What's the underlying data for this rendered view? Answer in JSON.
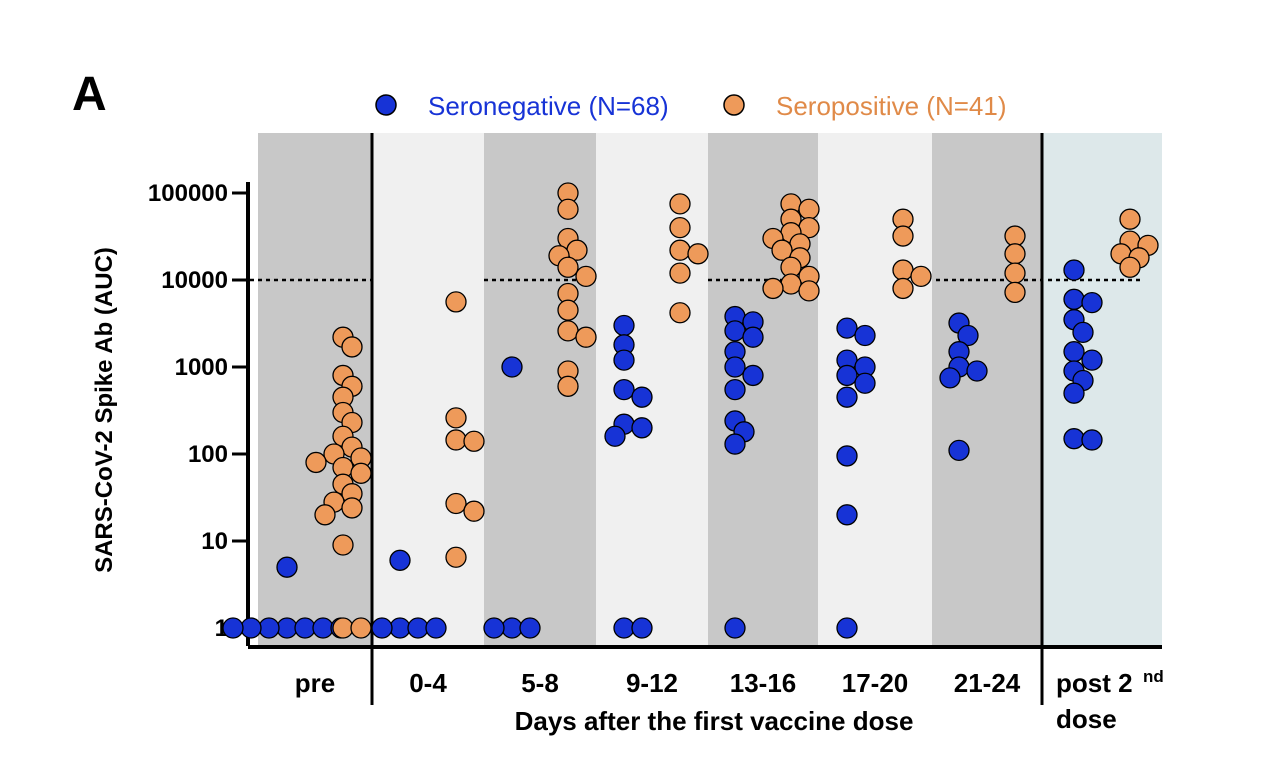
{
  "chart_data": {
    "type": "scatter",
    "panel_label": "A",
    "ylabel": "SARS-CoV-2 Spike Ab (AUC)",
    "xlabel": "Days after the first vaccine dose",
    "yscale": "log",
    "ylim": [
      1,
      100000
    ],
    "yticks": [
      {
        "value": 1,
        "label": "1"
      },
      {
        "value": 10,
        "label": "10"
      },
      {
        "value": 100,
        "label": "100"
      },
      {
        "value": 1000,
        "label": "1000"
      },
      {
        "value": 10000,
        "label": "10000"
      },
      {
        "value": 100000,
        "label": "100000"
      }
    ],
    "threshold": 10000,
    "legend": [
      {
        "label": "Seronegative (N=68)",
        "color": "#1733d6",
        "key": "seronegative"
      },
      {
        "label": "Seropositive (N=41)",
        "color": "#ee9a5a",
        "key": "seropositive"
      }
    ],
    "groups": [
      {
        "label": "pre",
        "shade": "#c8c8c8",
        "seronegative": [
          5,
          1,
          1,
          1,
          1,
          1,
          1,
          1
        ],
        "seropositive": [
          2200,
          1700,
          800,
          600,
          450,
          300,
          230,
          160,
          120,
          100,
          90,
          80,
          70,
          60,
          45,
          35,
          28,
          24,
          20,
          9,
          1,
          1
        ]
      },
      {
        "label": "0-4",
        "shade": "#f0f0f0",
        "seronegative": [
          6,
          1,
          1,
          1,
          1
        ],
        "seropositive": [
          5600,
          260,
          145,
          140,
          27,
          22,
          6.5
        ]
      },
      {
        "label": "5-8",
        "shade": "#c8c8c8",
        "seronegative": [
          1000,
          1,
          1,
          1
        ],
        "seropositive": [
          100000,
          65000,
          30000,
          22000,
          19000,
          14000,
          11000,
          7000,
          4500,
          2600,
          2200,
          900,
          600
        ]
      },
      {
        "label": "9-12",
        "shade": "#f0f0f0",
        "seronegative": [
          3000,
          1800,
          1200,
          550,
          450,
          220,
          200,
          160,
          1,
          1
        ],
        "seropositive": [
          75000,
          40000,
          22000,
          20000,
          12000,
          4200
        ]
      },
      {
        "label": "13-16",
        "shade": "#c8c8c8",
        "seronegative": [
          3800,
          3300,
          2600,
          2200,
          1500,
          1000,
          800,
          550,
          240,
          180,
          130,
          1
        ],
        "seropositive": [
          75000,
          65000,
          50000,
          40000,
          35000,
          30000,
          26000,
          22000,
          18000,
          14000,
          11000,
          9000,
          8000,
          7500
        ]
      },
      {
        "label": "17-20",
        "shade": "#f0f0f0",
        "seronegative": [
          2800,
          2300,
          1200,
          1000,
          800,
          650,
          450,
          95,
          20,
          1
        ],
        "seropositive": [
          50000,
          32000,
          13000,
          11000,
          8000
        ]
      },
      {
        "label": "21-24",
        "shade": "#c8c8c8",
        "seronegative": [
          3200,
          2300,
          1500,
          1000,
          900,
          750,
          110
        ],
        "seropositive": [
          32000,
          20000,
          12000,
          7200
        ]
      },
      {
        "label": "post 2",
        "label_sup": "nd",
        "label_line2": "dose",
        "shade": "#dde8ea",
        "seronegative": [
          13000,
          6000,
          5500,
          3500,
          2500,
          1500,
          1200,
          900,
          700,
          500,
          150,
          145
        ],
        "seropositive": [
          50000,
          28000,
          25000,
          20000,
          18000,
          14000
        ]
      }
    ]
  }
}
